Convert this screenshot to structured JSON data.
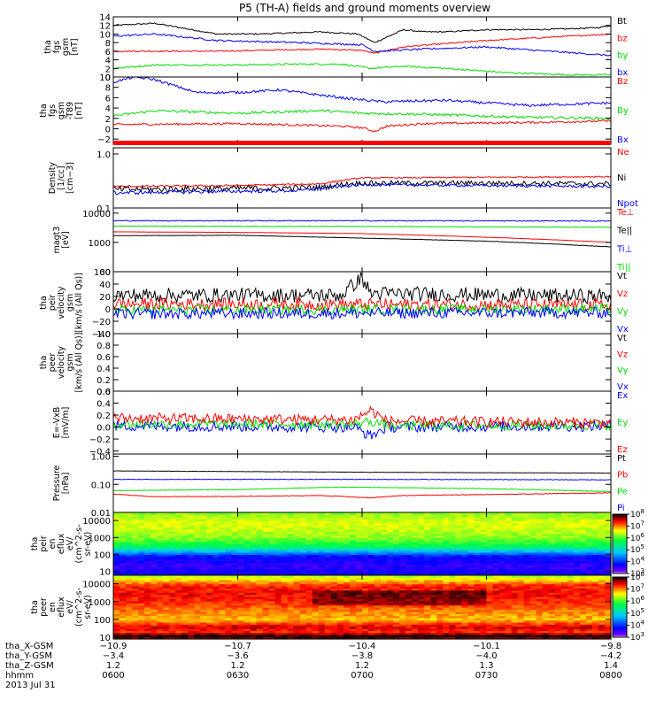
{
  "title": "P5 (TH-A) fields and ground moments overview",
  "colors": {
    "black": "#000000",
    "red": "#ff0000",
    "green": "#00dd00",
    "blue": "#0000ff"
  },
  "chart_data": [
    {
      "type": "line",
      "panel": "fgs-gsm",
      "ylabel_lines": [
        "tha",
        "fgs",
        "gsm",
        "[nT]"
      ],
      "ylim": [
        0,
        14
      ],
      "yticks": [
        0,
        2,
        4,
        6,
        8,
        10,
        12,
        14
      ],
      "yticklabels": [
        "0",
        "2",
        "4",
        "6",
        "8",
        "10",
        "12",
        "14"
      ],
      "series": [
        {
          "name": "Bt",
          "color": "#000000",
          "noise": 0.15,
          "x": [
            0,
            10,
            25,
            35,
            50,
            59,
            63,
            70,
            75,
            80,
            90,
            100,
            110,
            117,
            120
          ],
          "y": [
            12,
            12.5,
            10,
            10,
            10.5,
            10,
            8,
            11,
            10.5,
            10.5,
            11,
            11,
            11.2,
            11.5,
            12
          ]
        },
        {
          "name": "bz",
          "color": "#ff0000",
          "noise": 0.15,
          "x": [
            0,
            25,
            50,
            60,
            63,
            70,
            90,
            110,
            120
          ],
          "y": [
            6,
            6,
            6.5,
            6.2,
            5.5,
            7,
            8.5,
            9.5,
            10
          ]
        },
        {
          "name": "by",
          "color": "#00dd00",
          "noise": 0.2,
          "x": [
            0,
            10,
            30,
            45,
            55,
            62,
            70,
            80,
            95,
            110,
            120
          ],
          "y": [
            2,
            2.8,
            2.8,
            3,
            3,
            2,
            2.5,
            2,
            1,
            0.5,
            0.5
          ]
        },
        {
          "name": "bx",
          "color": "#0000ff",
          "noise": 0.2,
          "x": [
            0,
            10,
            25,
            45,
            60,
            63,
            75,
            90,
            105,
            120
          ],
          "y": [
            9.5,
            10,
            8.5,
            8,
            7.5,
            6,
            6.5,
            7,
            6,
            5
          ]
        }
      ]
    },
    {
      "type": "line",
      "panel": "fgs-dsl",
      "ylabel_lines": [
        "tha",
        "fgs",
        "gsm",
        "-T89",
        "[nT]"
      ],
      "ylim": [
        -3,
        10
      ],
      "yticks": [
        -2,
        0,
        2,
        4,
        6,
        8,
        10
      ],
      "yticklabels": [
        "−2",
        "0",
        "2",
        "4",
        "6",
        "8",
        "10"
      ],
      "series": [
        {
          "name": "Bz",
          "color": "#ff0000",
          "noise": 0.2,
          "x": [
            0,
            30,
            55,
            60,
            63,
            66,
            75,
            100,
            120
          ],
          "y": [
            0.8,
            1,
            0.5,
            0.2,
            -0.5,
            0.5,
            1,
            1.2,
            1.5
          ]
        },
        {
          "name": "By",
          "color": "#00dd00",
          "noise": 0.25,
          "x": [
            0,
            10,
            30,
            50,
            60,
            75,
            100,
            120
          ],
          "y": [
            2.5,
            3.5,
            3,
            3.5,
            3,
            2.8,
            2.2,
            2
          ]
        },
        {
          "name": "Bx",
          "color": "#0000ff",
          "noise": 0.25,
          "x": [
            0,
            5,
            10,
            20,
            30,
            40,
            55,
            65,
            80,
            100,
            120
          ],
          "y": [
            9,
            10,
            9.5,
            7,
            7,
            7.5,
            6,
            5.2,
            5.5,
            4.5,
            5
          ]
        }
      ]
    },
    {
      "type": "line",
      "panel": "density",
      "ylabel_lines": [
        "Density",
        "[1/cc]",
        "[cm−3]"
      ],
      "yscale": "log",
      "ylim": [
        0.1,
        1.3
      ],
      "yticks": [
        0.1,
        1.0
      ],
      "yticklabels": [
        "0.1",
        "1.0"
      ],
      "series": [
        {
          "name": "Ne",
          "color": "#ff0000",
          "noise": 0.01,
          "x": [
            0,
            30,
            50,
            56,
            60,
            90,
            120
          ],
          "y": [
            0.25,
            0.26,
            0.28,
            0.33,
            0.36,
            0.37,
            0.38
          ]
        },
        {
          "name": "Ni",
          "color": "#000000",
          "noise": 0.03,
          "x": [
            0,
            30,
            50,
            56,
            60,
            90,
            120
          ],
          "y": [
            0.22,
            0.23,
            0.24,
            0.28,
            0.29,
            0.29,
            0.28
          ]
        },
        {
          "name": "Npot",
          "color": "#0000ff",
          "noise": 0.015,
          "x": [
            0,
            20,
            45,
            55,
            60,
            90,
            120
          ],
          "y": [
            0.19,
            0.2,
            0.21,
            0.25,
            0.27,
            0.26,
            0.25
          ]
        }
      ]
    },
    {
      "type": "line",
      "panel": "temperature",
      "ylabel_lines": [
        "magt3",
        "[eV]"
      ],
      "yscale": "log",
      "ylim": [
        100,
        15000
      ],
      "yticks": [
        100,
        1000,
        10000
      ],
      "yticklabels": [
        "100",
        "1000",
        "10000"
      ],
      "series": [
        {
          "name": "Te⊥",
          "color": "#ff0000",
          "noise": 10,
          "x": [
            0,
            30,
            60,
            90,
            120
          ],
          "y": [
            2300,
            2200,
            2000,
            1500,
            1000
          ]
        },
        {
          "name": "Te||",
          "color": "#000000",
          "noise": 15,
          "x": [
            0,
            30,
            60,
            90,
            120
          ],
          "y": [
            1700,
            1750,
            1400,
            1100,
            700
          ]
        },
        {
          "name": "Ti⊥",
          "color": "#0000ff",
          "noise": 200,
          "x": [
            0,
            60,
            120
          ],
          "y": [
            5500,
            5500,
            5400
          ]
        },
        {
          "name": "Ti||",
          "color": "#00dd00",
          "noise": 80,
          "x": [
            0,
            60,
            120
          ],
          "y": [
            3600,
            3500,
            3300
          ]
        }
      ]
    },
    {
      "type": "line",
      "panel": "peir-velocity",
      "ylabel_lines": [
        "tha",
        "peir",
        "velocity",
        "gsm",
        "[km/s (All Qs)]"
      ],
      "ylim": [
        -40,
        60
      ],
      "yticks": [
        -40,
        -20,
        0,
        20,
        40,
        60
      ],
      "yticklabels": [
        "−40",
        "−20",
        "0",
        "20",
        "40",
        "60"
      ],
      "series": [
        {
          "name": "Vt",
          "color": "#000000",
          "noise": 12,
          "x": [
            0,
            55,
            58,
            60,
            62,
            120
          ],
          "y": [
            22,
            22,
            40,
            50,
            25,
            20
          ]
        },
        {
          "name": "Vz",
          "color": "#ff0000",
          "noise": 10,
          "x": [
            0,
            120
          ],
          "y": [
            8,
            6
          ]
        },
        {
          "name": "Vy",
          "color": "#00dd00",
          "noise": 8,
          "x": [
            0,
            120
          ],
          "y": [
            -2,
            0
          ]
        },
        {
          "name": "Vx",
          "color": "#0000ff",
          "noise": 9,
          "x": [
            0,
            120
          ],
          "y": [
            -8,
            -6
          ]
        }
      ]
    },
    {
      "type": "line",
      "panel": "peer-velocity",
      "ylabel_lines": [
        "tha",
        "peer",
        "velocity",
        "gsm",
        "[km/s (All Qs)]"
      ],
      "ylim": [
        0,
        1
      ],
      "yticks": [
        0,
        0.2,
        0.4,
        0.6,
        0.8,
        1.0
      ],
      "yticklabels": [
        "0.0",
        "0.2",
        "0.4",
        "0.6",
        "0.8",
        "1.0"
      ],
      "series": [
        {
          "name": "Vt",
          "color": "#000000",
          "x": [],
          "y": []
        },
        {
          "name": "Vz",
          "color": "#ff0000",
          "x": [],
          "y": []
        },
        {
          "name": "Vy",
          "color": "#00dd00",
          "x": [],
          "y": []
        },
        {
          "name": "Vx",
          "color": "#0000ff",
          "x": [],
          "y": []
        }
      ]
    },
    {
      "type": "line",
      "panel": "e-field",
      "ylabel_lines": [
        "E=-VxB",
        "[mV/m]"
      ],
      "ylim": [
        -0.45,
        0.6
      ],
      "yticks": [
        -0.4,
        -0.2,
        0,
        0.2,
        0.4,
        0.6
      ],
      "yticklabels": [
        "−0.4",
        "−0.2",
        "0.0",
        "0.2",
        "0.4",
        "0.6"
      ],
      "series": [
        {
          "name": "Ex",
          "color": "#0000ff",
          "noise": 0.09,
          "x": [
            0,
            58,
            62,
            66,
            120
          ],
          "y": [
            0.02,
            0,
            -0.15,
            0,
            0.02
          ]
        },
        {
          "name": "Ey",
          "color": "#00dd00",
          "noise": 0.08,
          "x": [
            0,
            58,
            62,
            66,
            120
          ],
          "y": [
            0.05,
            0.05,
            0.1,
            0.03,
            0.03
          ]
        },
        {
          "name": "Ez",
          "color": "#ff0000",
          "noise": 0.09,
          "x": [
            0,
            58,
            62,
            66,
            120
          ],
          "y": [
            0.15,
            0.12,
            0.28,
            0.1,
            0.07
          ]
        }
      ]
    },
    {
      "type": "line",
      "panel": "pressure",
      "ylabel_lines": [
        "Pressure",
        "[nPa]"
      ],
      "yscale": "log",
      "ylim": [
        0.01,
        1.2
      ],
      "yticks": [
        0.01,
        0.1,
        1.0
      ],
      "yticklabels": [
        "0.01",
        "0.10",
        "1.00"
      ],
      "series": [
        {
          "name": "Pt",
          "color": "#000000",
          "noise": 0.003,
          "x": [
            0,
            60,
            120
          ],
          "y": [
            0.3,
            0.27,
            0.25
          ]
        },
        {
          "name": "Pb",
          "color": "#ff0000",
          "noise": 0.001,
          "x": [
            0,
            10,
            30,
            50,
            62,
            70,
            100,
            120
          ],
          "y": [
            0.045,
            0.036,
            0.037,
            0.04,
            0.033,
            0.04,
            0.045,
            0.05
          ]
        },
        {
          "name": "Pe",
          "color": "#00dd00",
          "noise": 0.001,
          "x": [
            0,
            30,
            55,
            90,
            120
          ],
          "y": [
            0.06,
            0.065,
            0.08,
            0.07,
            0.055
          ]
        },
        {
          "name": "Pi",
          "color": "#0000ff",
          "noise": 0.003,
          "x": [
            0,
            60,
            120
          ],
          "y": [
            0.15,
            0.15,
            0.145
          ]
        }
      ]
    },
    {
      "type": "heatmap",
      "panel": "peir-en-eflux",
      "ylabel_lines": [
        "tha",
        "peir",
        "en",
        "eflux",
        "eV/",
        "(cm^2-s-",
        "sr-eV)"
      ],
      "yscale": "log",
      "ylim": [
        6,
        30000
      ],
      "yticks": [
        10,
        100,
        1000,
        10000
      ],
      "yticklabels": [
        "10",
        "100",
        "1000",
        "10000"
      ],
      "colorbar": {
        "min_exp": 3,
        "max_exp": 8,
        "tick_exponents": [
          3,
          4,
          5,
          6,
          7,
          8
        ]
      },
      "profile": {
        "energy": [
          6,
          20,
          80,
          150,
          300,
          1000,
          3000,
          8000,
          30000
        ],
        "log_flux": [
          3.8,
          3.5,
          3.8,
          4.6,
          5.6,
          6.2,
          6.4,
          6.5,
          6.2
        ]
      }
    },
    {
      "type": "heatmap",
      "panel": "peer-en-eflux",
      "ylabel_lines": [
        "tha",
        "peer",
        "en",
        "eflux",
        "eV/",
        "(cm^2-s-",
        "sr-eV)"
      ],
      "yscale": "log",
      "ylim": [
        8,
        30000
      ],
      "yticks": [
        10,
        100,
        1000,
        10000
      ],
      "yticklabels": [
        "10",
        "100",
        "1000",
        "10000"
      ],
      "colorbar": {
        "min_exp": 3,
        "max_exp": 8,
        "tick_exponents": [
          3,
          4,
          5,
          6,
          7,
          8
        ]
      },
      "profile": {
        "energy": [
          8,
          12,
          20,
          40,
          100,
          300,
          1000,
          3000,
          8000,
          20000,
          30000
        ],
        "log_flux": [
          7.6,
          8,
          7.3,
          7.5,
          6.8,
          7,
          7.3,
          7.4,
          7.3,
          6.6,
          6.3
        ]
      }
    }
  ],
  "x_axis": {
    "range": [
      0,
      120
    ],
    "ticks": [
      0,
      30,
      60,
      90,
      120
    ],
    "rows": [
      {
        "label": "tha_X-GSM",
        "values": [
          "−10.9",
          "−10.7",
          "−10.4",
          "−10.1",
          "−9.8"
        ]
      },
      {
        "label": "tha_Y-GSM",
        "values": [
          "−3.4",
          "−3.6",
          "−3.8",
          "−4.0",
          "−4.2"
        ]
      },
      {
        "label": "tha_Z-GSM",
        "values": [
          "1.2",
          "1.2",
          "1.2",
          "1.3",
          "1.4"
        ]
      },
      {
        "label": "hhmm",
        "values": [
          "0600",
          "0630",
          "0700",
          "0730",
          "0800"
        ]
      }
    ],
    "date": "2013 Jul 31"
  }
}
